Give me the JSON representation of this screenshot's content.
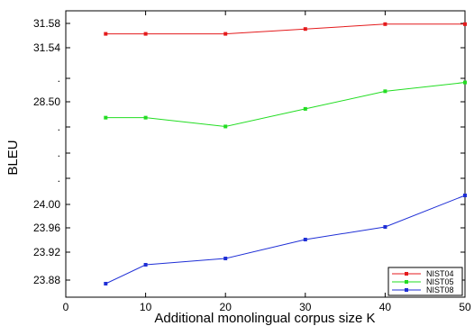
{
  "chart_data": {
    "type": "line",
    "xlabel": "Additional monolingual corpus size K",
    "ylabel": "BLEU",
    "x": [
      5,
      10,
      20,
      30,
      40,
      50
    ],
    "xlim": [
      0,
      50
    ],
    "x_ticks": [
      "0",
      "10",
      "20",
      "30",
      "40",
      "50"
    ],
    "y_ticks": [
      "31.58",
      "31.54",
      ".",
      "28.50",
      ".",
      ".",
      ".",
      "24.00",
      "23.96",
      "23.92",
      "23.88"
    ],
    "y_axis_note": "broken axis; tick labels are printed in discontinuous segments",
    "grid": false,
    "legend_position": "bottom-right",
    "series": [
      {
        "name": "NIST04",
        "color": "#e41a1c",
        "values": [
          31.56,
          31.56,
          31.56,
          31.57,
          31.58,
          31.58
        ]
      },
      {
        "name": "NIST05",
        "color": "#22dd22",
        "values": [
          28.5,
          28.5,
          28.4,
          28.6,
          28.8,
          28.9
        ]
      },
      {
        "name": "NIST08",
        "color": "#1f2fd6",
        "values": [
          23.87,
          23.9,
          23.91,
          23.94,
          23.96,
          24.01
        ]
      }
    ]
  }
}
